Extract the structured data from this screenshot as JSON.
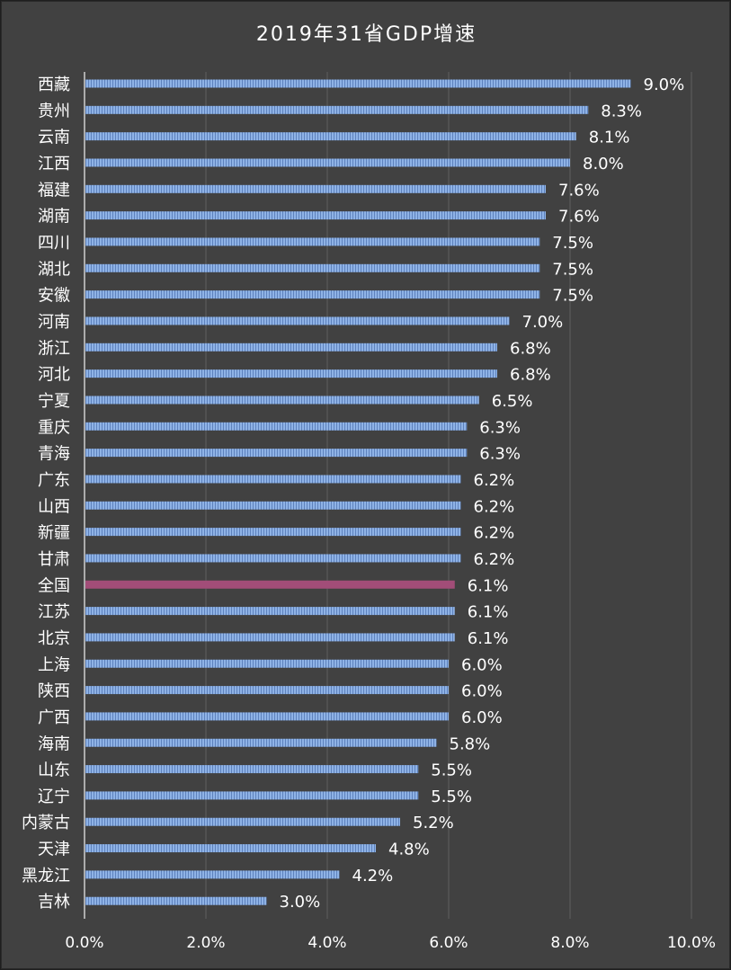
{
  "chart_data": {
    "type": "bar",
    "orientation": "horizontal",
    "title": "2019年31省GDP增速",
    "xlim": [
      0,
      0.1
    ],
    "x_ticks": [
      "0.0%",
      "2.0%",
      "4.0%",
      "6.0%",
      "8.0%",
      "10.0%"
    ],
    "grid": true,
    "categories": [
      "西藏",
      "贵州",
      "云南",
      "江西",
      "福建",
      "湖南",
      "四川",
      "湖北",
      "安徽",
      "河南",
      "浙江",
      "河北",
      "宁夏",
      "重庆",
      "青海",
      "广东",
      "山西",
      "新疆",
      "甘肃",
      "全国",
      "江苏",
      "北京",
      "上海",
      "陕西",
      "广西",
      "海南",
      "山东",
      "辽宁",
      "内蒙古",
      "天津",
      "黑龙江",
      "吉林"
    ],
    "values": [
      0.09,
      0.083,
      0.081,
      0.08,
      0.076,
      0.076,
      0.075,
      0.075,
      0.075,
      0.07,
      0.068,
      0.068,
      0.065,
      0.063,
      0.063,
      0.062,
      0.062,
      0.062,
      0.062,
      0.061,
      0.061,
      0.061,
      0.06,
      0.06,
      0.06,
      0.058,
      0.055,
      0.055,
      0.052,
      0.048,
      0.042,
      0.03
    ],
    "value_labels": [
      "9.0%",
      "8.3%",
      "8.1%",
      "8.0%",
      "7.6%",
      "7.6%",
      "7.5%",
      "7.5%",
      "7.5%",
      "7.0%",
      "6.8%",
      "6.8%",
      "6.5%",
      "6.3%",
      "6.3%",
      "6.2%",
      "6.2%",
      "6.2%",
      "6.2%",
      "6.1%",
      "6.1%",
      "6.1%",
      "6.0%",
      "6.0%",
      "6.0%",
      "5.8%",
      "5.5%",
      "5.5%",
      "5.2%",
      "4.8%",
      "4.2%",
      "3.0%"
    ],
    "highlight_category": "全国",
    "colors": {
      "bar": "#8fb3e6",
      "bar_stripe": "#5e82bd",
      "highlight": "#a24d78",
      "text": "#ffffff",
      "grid": "#5e5e5e",
      "axis": "#cfcfcf",
      "background": "#414141"
    }
  }
}
